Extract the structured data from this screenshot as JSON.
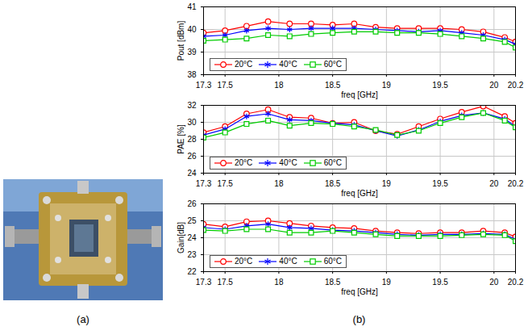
{
  "captions": [
    "(a)",
    "(b)"
  ],
  "chart_data": [
    {
      "type": "line",
      "ylabel": "Pout [dBm]",
      "xlabel": "freq [GHz]",
      "x": [
        17.3,
        17.5,
        17.7,
        17.9,
        18.1,
        18.3,
        18.5,
        18.7,
        18.9,
        19.1,
        19.3,
        19.5,
        19.7,
        19.9,
        20.1,
        20.2
      ],
      "xlim": [
        17.3,
        20.2
      ],
      "xticks": [
        17.3,
        17.5,
        18,
        18.5,
        19,
        19.5,
        20,
        20.2
      ],
      "ylim": [
        38,
        41
      ],
      "yticks": [
        38,
        39,
        40,
        41
      ],
      "grid": true,
      "legend": "lower left",
      "series": [
        {
          "name": "20°C",
          "color": "#ff0000",
          "marker": "circle",
          "values": [
            39.85,
            39.95,
            40.15,
            40.35,
            40.25,
            40.25,
            40.2,
            40.25,
            40.1,
            40.05,
            40.05,
            40.05,
            40.0,
            39.9,
            39.65,
            39.45
          ]
        },
        {
          "name": "40°C",
          "color": "#0000ff",
          "marker": "asterisk",
          "values": [
            39.7,
            39.75,
            39.95,
            40.05,
            40.0,
            40.05,
            40.05,
            40.05,
            40.0,
            39.95,
            39.9,
            39.95,
            39.85,
            39.75,
            39.55,
            39.35
          ]
        },
        {
          "name": "60°C",
          "color": "#00cc00",
          "marker": "square",
          "values": [
            39.5,
            39.55,
            39.6,
            39.75,
            39.7,
            39.8,
            39.85,
            39.9,
            39.9,
            39.85,
            39.85,
            39.8,
            39.7,
            39.6,
            39.45,
            39.2
          ]
        }
      ]
    },
    {
      "type": "line",
      "ylabel": "PAE [%]",
      "xlabel": "freq [GHz]",
      "x": [
        17.3,
        17.5,
        17.7,
        17.9,
        18.1,
        18.3,
        18.5,
        18.7,
        18.9,
        19.1,
        19.3,
        19.5,
        19.7,
        19.9,
        20.1,
        20.2
      ],
      "xlim": [
        17.3,
        20.2
      ],
      "xticks": [
        17.3,
        17.5,
        18,
        18.5,
        19,
        19.5,
        20,
        20.2
      ],
      "ylim": [
        24,
        32
      ],
      "yticks": [
        24,
        26,
        28,
        30,
        32
      ],
      "grid": true,
      "legend": "lower left",
      "series": [
        {
          "name": "20°C",
          "color": "#ff0000",
          "marker": "circle",
          "values": [
            28.8,
            29.5,
            31.0,
            31.5,
            30.6,
            30.5,
            29.9,
            30.0,
            29.0,
            28.6,
            29.5,
            30.4,
            31.2,
            31.9,
            30.7,
            29.9
          ]
        },
        {
          "name": "40°C",
          "color": "#0000ff",
          "marker": "asterisk",
          "values": [
            28.5,
            29.2,
            30.7,
            31.0,
            30.3,
            30.2,
            29.9,
            29.7,
            29.0,
            28.4,
            29.1,
            30.1,
            30.8,
            31.1,
            30.4,
            29.5
          ]
        },
        {
          "name": "60°C",
          "color": "#00cc00",
          "marker": "square",
          "values": [
            28.2,
            28.8,
            29.8,
            30.2,
            29.6,
            29.9,
            29.8,
            29.5,
            29.1,
            28.5,
            29.0,
            29.9,
            30.6,
            31.1,
            30.2,
            29.4
          ]
        }
      ]
    },
    {
      "type": "line",
      "ylabel": "Gain[dB]",
      "xlabel": "freq [GHz]",
      "x": [
        17.3,
        17.5,
        17.7,
        17.9,
        18.1,
        18.3,
        18.5,
        18.7,
        18.9,
        19.1,
        19.3,
        19.5,
        19.7,
        19.9,
        20.1,
        20.2
      ],
      "xlim": [
        17.3,
        20.2
      ],
      "xticks": [
        17.3,
        17.5,
        18,
        18.5,
        19,
        19.5,
        20,
        20.2
      ],
      "ylim": [
        22,
        26
      ],
      "yticks": [
        22,
        23,
        24,
        25,
        26
      ],
      "grid": true,
      "legend": "lower left",
      "series": [
        {
          "name": "20°C",
          "color": "#ff0000",
          "marker": "circle",
          "values": [
            24.8,
            24.65,
            24.95,
            25.0,
            24.85,
            24.7,
            24.6,
            24.55,
            24.4,
            24.3,
            24.25,
            24.3,
            24.3,
            24.4,
            24.3,
            24.05
          ]
        },
        {
          "name": "40°C",
          "color": "#0000ff",
          "marker": "asterisk",
          "values": [
            24.6,
            24.5,
            24.7,
            24.8,
            24.6,
            24.55,
            24.45,
            24.4,
            24.3,
            24.2,
            24.15,
            24.2,
            24.2,
            24.25,
            24.2,
            23.9
          ]
        },
        {
          "name": "60°C",
          "color": "#00cc00",
          "marker": "square",
          "values": [
            24.45,
            24.4,
            24.5,
            24.5,
            24.3,
            24.3,
            24.4,
            24.3,
            24.2,
            24.1,
            24.1,
            24.1,
            24.15,
            24.2,
            24.15,
            23.8
          ]
        }
      ]
    }
  ]
}
